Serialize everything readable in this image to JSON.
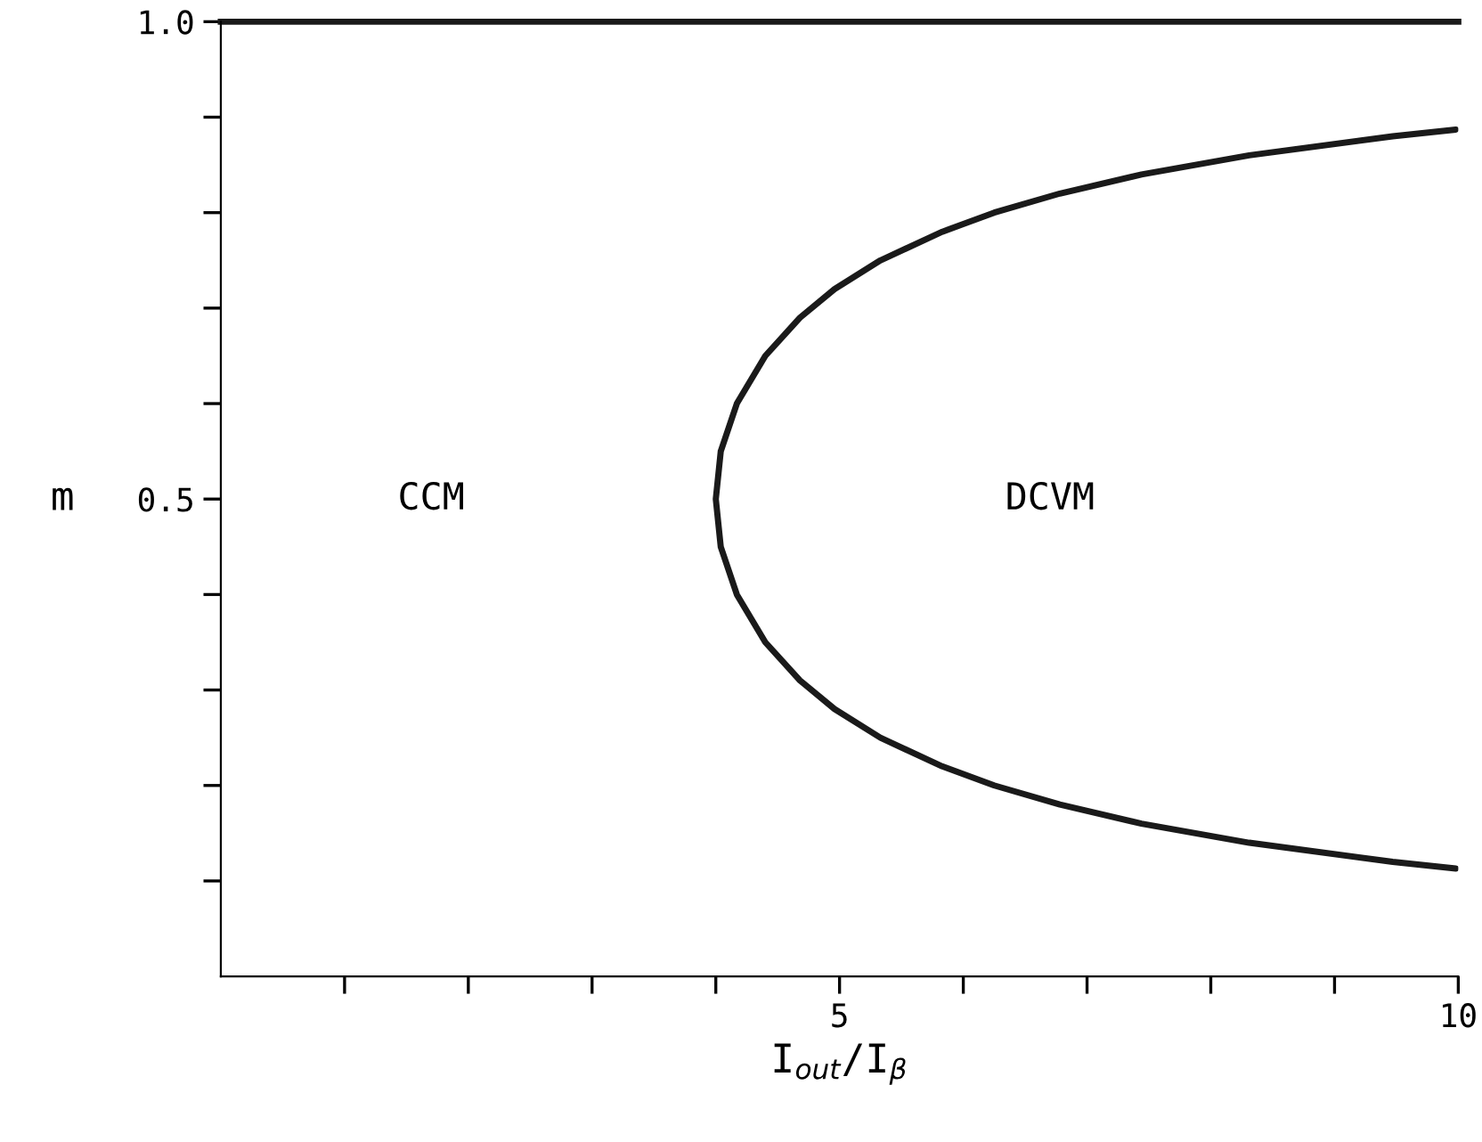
{
  "chart_data": {
    "type": "line",
    "xlabel": "I$_{out}$/I$_{β}$",
    "ylabel": "m",
    "xlim": [
      0,
      10
    ],
    "ylim": [
      0,
      1.0
    ],
    "xticks": [
      {
        "value": 1,
        "label": null
      },
      {
        "value": 2,
        "label": null
      },
      {
        "value": 3,
        "label": null
      },
      {
        "value": 4,
        "label": null
      },
      5,
      {
        "value": 6,
        "label": null
      },
      {
        "value": 7,
        "label": null
      },
      {
        "value": 8,
        "label": null
      },
      {
        "value": 9,
        "label": null
      },
      10
    ],
    "yticks": [
      {
        "value": 0.1,
        "label": null
      },
      {
        "value": 0.2,
        "label": null
      },
      {
        "value": 0.3,
        "label": null
      },
      {
        "value": 0.4,
        "label": null
      },
      0.5,
      {
        "value": 0.6,
        "label": null
      },
      {
        "value": 0.7,
        "label": null
      },
      {
        "value": 0.8,
        "label": null
      },
      {
        "value": 0.9,
        "label": null
      },
      {
        "value": 1.0,
        "label": "1.0"
      }
    ],
    "series": [
      {
        "color": "#1a1a1a",
        "x": [
          9.98,
          9.47,
          8.31,
          7.44,
          6.78,
          6.25,
          5.83,
          5.33,
          4.96,
          4.68,
          4.4,
          4.17,
          4.04,
          4.0,
          4.04,
          4.17,
          4.4,
          4.68,
          4.96,
          5.33,
          5.83,
          6.25,
          6.78,
          7.44,
          8.31,
          9.47,
          9.98
        ],
        "values": [
          0.113,
          0.12,
          0.14,
          0.16,
          0.18,
          0.2,
          0.22,
          0.25,
          0.28,
          0.31,
          0.35,
          0.4,
          0.45,
          0.5,
          0.55,
          0.6,
          0.65,
          0.69,
          0.72,
          0.75,
          0.78,
          0.8,
          0.82,
          0.84,
          0.86,
          0.88,
          0.887
        ]
      }
    ],
    "ref_lines": [
      {
        "axis": "y",
        "value": 1.0,
        "color": "#1a1a1a"
      }
    ],
    "annotations": [
      "CCM",
      "DCVM"
    ],
    "grid": false,
    "legend": false,
    "marker": "none",
    "line_style": "solid"
  }
}
